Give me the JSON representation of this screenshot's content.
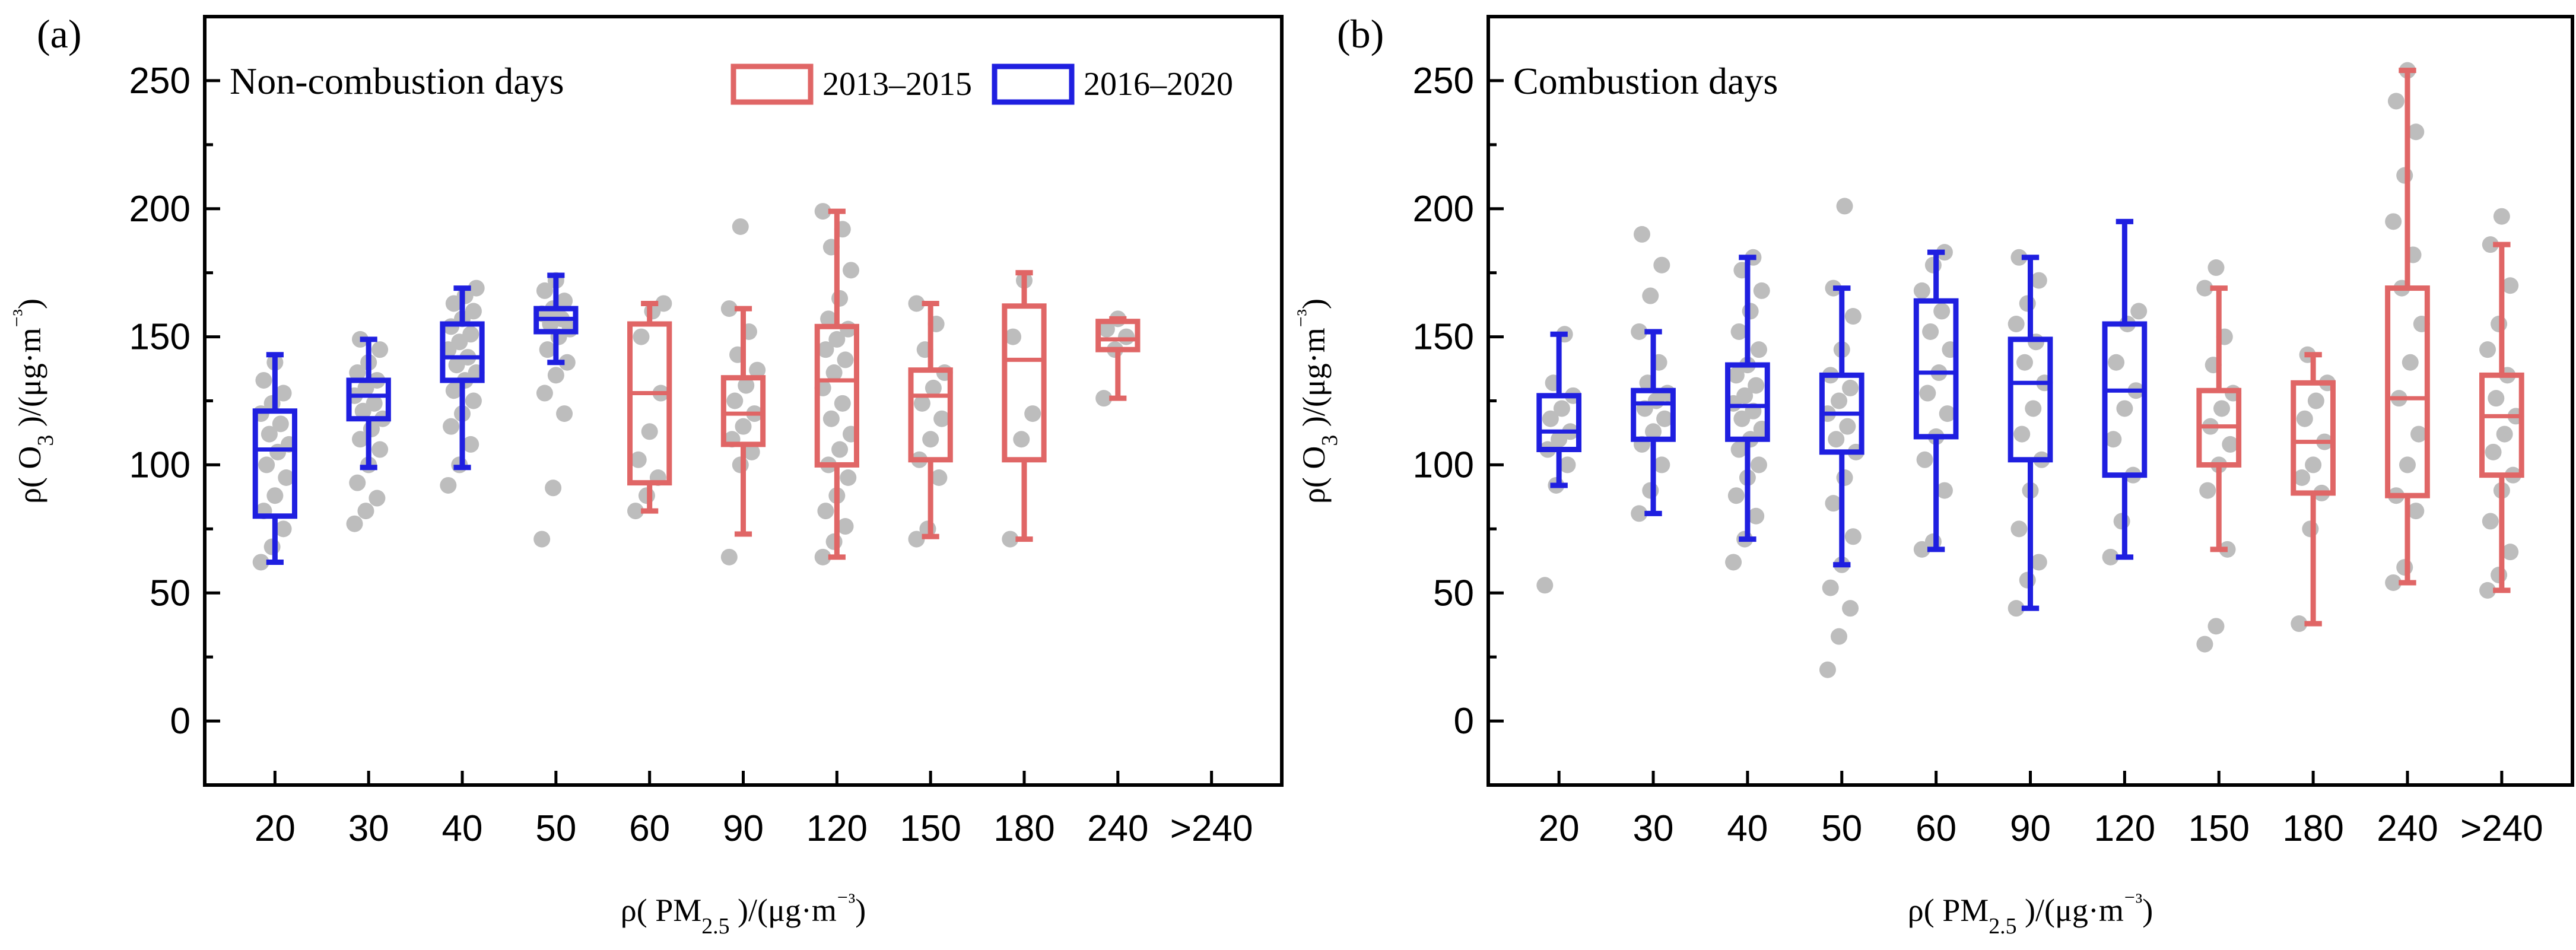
{
  "figure": {
    "panels": [
      "(a)",
      "(b)"
    ],
    "legend": [
      {
        "label": "2013–2015",
        "color": "#e06666"
      },
      {
        "label": "2016–2020",
        "color": "#1f1fe0"
      }
    ],
    "point_color": "#bdbdbd"
  },
  "chart_data": [
    {
      "type": "box",
      "panel": "(a)",
      "title": "Non-combustion days",
      "xlabel": "ρ( PM2.5 )/(μg·m⁻³)",
      "ylabel": "ρ( O3 )/(μg·m⁻³)",
      "ylim": [
        -25,
        275
      ],
      "yticks": [
        0,
        50,
        100,
        150,
        200,
        250
      ],
      "categories": [
        "20",
        "30",
        "40",
        "50",
        "60",
        "90",
        "120",
        "150",
        "180",
        "240",
        ">240"
      ],
      "series": [
        {
          "name": "2016–2020",
          "color": "#1f1fe0",
          "categories": [
            "20",
            "30",
            "40",
            "50"
          ],
          "boxes": [
            {
              "min": 62,
              "q1": 80,
              "median": 106,
              "q3": 121,
              "max": 143
            },
            {
              "min": 99,
              "q1": 118,
              "median": 127,
              "q3": 133,
              "max": 149
            },
            {
              "min": 99,
              "q1": 133,
              "median": 142,
              "q3": 155,
              "max": 169
            },
            {
              "min": 140,
              "q1": 152,
              "median": 157,
              "q3": 161,
              "max": 174
            }
          ]
        },
        {
          "name": "2013–2015",
          "color": "#e06666",
          "categories": [
            "60",
            "90",
            "120",
            "150",
            "180",
            "240"
          ],
          "boxes": [
            {
              "min": 82,
              "q1": 93,
              "median": 128,
              "q3": 155,
              "max": 163
            },
            {
              "min": 73,
              "q1": 108,
              "median": 120,
              "q3": 134,
              "max": 161
            },
            {
              "min": 64,
              "q1": 100,
              "median": 133,
              "q3": 154,
              "max": 199
            },
            {
              "min": 72,
              "q1": 102,
              "median": 127,
              "q3": 137,
              "max": 163
            },
            {
              "min": 71,
              "q1": 102,
              "median": 141,
              "q3": 162,
              "max": 175
            },
            {
              "min": 126,
              "q1": 145,
              "median": 149,
              "q3": 156,
              "max": 157
            }
          ]
        }
      ],
      "points": [
        {
          "category": "20",
          "values": [
            62,
            68,
            75,
            82,
            88,
            95,
            100,
            105,
            108,
            112,
            116,
            120,
            124,
            128,
            133,
            140
          ]
        },
        {
          "category": "30",
          "values": [
            77,
            82,
            87,
            93,
            100,
            106,
            110,
            114,
            118,
            121,
            124,
            127,
            130,
            133,
            136,
            140,
            145,
            149
          ]
        },
        {
          "category": "40",
          "values": [
            92,
            100,
            108,
            115,
            120,
            125,
            129,
            133,
            136,
            139,
            142,
            145,
            148,
            151,
            154,
            157,
            160,
            163,
            166,
            169
          ]
        },
        {
          "category": "50",
          "values": [
            71,
            91,
            120,
            128,
            135,
            140,
            145,
            150,
            153,
            155,
            157,
            159,
            161,
            164,
            168,
            172
          ]
        },
        {
          "category": "60",
          "values": [
            82,
            88,
            95,
            102,
            113,
            128,
            150,
            160,
            163
          ]
        },
        {
          "category": "90",
          "values": [
            64,
            100,
            105,
            110,
            115,
            120,
            125,
            131,
            137,
            143,
            152,
            161,
            193
          ]
        },
        {
          "category": "120",
          "values": [
            64,
            70,
            76,
            82,
            88,
            95,
            100,
            106,
            112,
            118,
            124,
            130,
            136,
            141,
            145,
            149,
            153,
            157,
            165,
            176,
            185,
            192,
            199
          ]
        },
        {
          "category": "150",
          "values": [
            71,
            75,
            95,
            102,
            110,
            118,
            124,
            130,
            136,
            145,
            155,
            163
          ]
        },
        {
          "category": "180",
          "values": [
            71,
            110,
            120,
            150,
            172
          ]
        },
        {
          "category": "240",
          "values": [
            126,
            145,
            150,
            153,
            157
          ]
        }
      ]
    },
    {
      "type": "box",
      "panel": "(b)",
      "title": "Combustion days",
      "xlabel": "ρ( PM2.5 )/(μg·m⁻³)",
      "ylabel": "ρ( O3 )/(μg·m⁻³)",
      "ylim": [
        -25,
        275
      ],
      "yticks": [
        0,
        50,
        100,
        150,
        200,
        250
      ],
      "categories": [
        "20",
        "30",
        "40",
        "50",
        "60",
        "90",
        "120",
        "150",
        "180",
        "240",
        ">240"
      ],
      "series": [
        {
          "name": "2016–2020",
          "color": "#1f1fe0",
          "categories": [
            "20",
            "30",
            "40",
            "50",
            "60",
            "90",
            "120"
          ],
          "boxes": [
            {
              "min": 92,
              "q1": 106,
              "median": 113,
              "q3": 127,
              "max": 151
            },
            {
              "min": 81,
              "q1": 110,
              "median": 124,
              "q3": 129,
              "max": 152
            },
            {
              "min": 71,
              "q1": 110,
              "median": 123,
              "q3": 139,
              "max": 181
            },
            {
              "min": 61,
              "q1": 105,
              "median": 120,
              "q3": 135,
              "max": 169
            },
            {
              "min": 67,
              "q1": 111,
              "median": 136,
              "q3": 164,
              "max": 183
            },
            {
              "min": 44,
              "q1": 102,
              "median": 132,
              "q3": 149,
              "max": 181
            },
            {
              "min": 64,
              "q1": 96,
              "median": 129,
              "q3": 155,
              "max": 195
            }
          ]
        },
        {
          "name": "2013–2015",
          "color": "#e06666",
          "categories": [
            "150",
            "180",
            "240",
            ">240"
          ],
          "boxes": [
            {
              "min": 67,
              "q1": 100,
              "median": 115,
              "q3": 129,
              "max": 169
            },
            {
              "min": 38,
              "q1": 89,
              "median": 109,
              "q3": 132,
              "max": 143
            },
            {
              "min": 54,
              "q1": 88,
              "median": 126,
              "q3": 169,
              "max": 254
            },
            {
              "min": 51,
              "q1": 96,
              "median": 119,
              "q3": 135,
              "max": 186
            }
          ]
        }
      ],
      "points": [
        {
          "category": "20",
          "values": [
            53,
            92,
            100,
            106,
            110,
            113,
            118,
            122,
            127,
            132,
            151
          ]
        },
        {
          "category": "30",
          "values": [
            81,
            90,
            100,
            108,
            113,
            118,
            122,
            125,
            128,
            132,
            140,
            152,
            166,
            178,
            190
          ]
        },
        {
          "category": "40",
          "values": [
            62,
            71,
            80,
            88,
            95,
            100,
            106,
            110,
            114,
            118,
            121,
            124,
            127,
            131,
            135,
            139,
            145,
            152,
            160,
            168,
            176,
            181
          ]
        },
        {
          "category": "50",
          "values": [
            20,
            33,
            44,
            52,
            61,
            72,
            85,
            95,
            105,
            110,
            115,
            120,
            125,
            130,
            135,
            145,
            158,
            169,
            201
          ]
        },
        {
          "category": "60",
          "values": [
            67,
            70,
            90,
            102,
            111,
            120,
            128,
            136,
            145,
            152,
            160,
            168,
            178,
            183
          ]
        },
        {
          "category": "90",
          "values": [
            44,
            55,
            62,
            75,
            90,
            102,
            112,
            122,
            132,
            140,
            148,
            155,
            163,
            172,
            181
          ]
        },
        {
          "category": "120",
          "values": [
            64,
            78,
            96,
            110,
            122,
            129,
            140,
            155,
            160
          ]
        },
        {
          "category": "150",
          "values": [
            30,
            37,
            67,
            90,
            100,
            108,
            115,
            122,
            128,
            139,
            150,
            169,
            177
          ]
        },
        {
          "category": "180",
          "values": [
            38,
            75,
            89,
            95,
            100,
            109,
            118,
            125,
            132,
            143
          ]
        },
        {
          "category": "240",
          "values": [
            54,
            60,
            82,
            88,
            100,
            112,
            126,
            140,
            155,
            169,
            182,
            195,
            213,
            230,
            242,
            254
          ]
        },
        {
          "category": ">240",
          "values": [
            51,
            57,
            66,
            78,
            90,
            96,
            105,
            112,
            119,
            126,
            135,
            145,
            155,
            170,
            186,
            197
          ]
        }
      ]
    }
  ]
}
